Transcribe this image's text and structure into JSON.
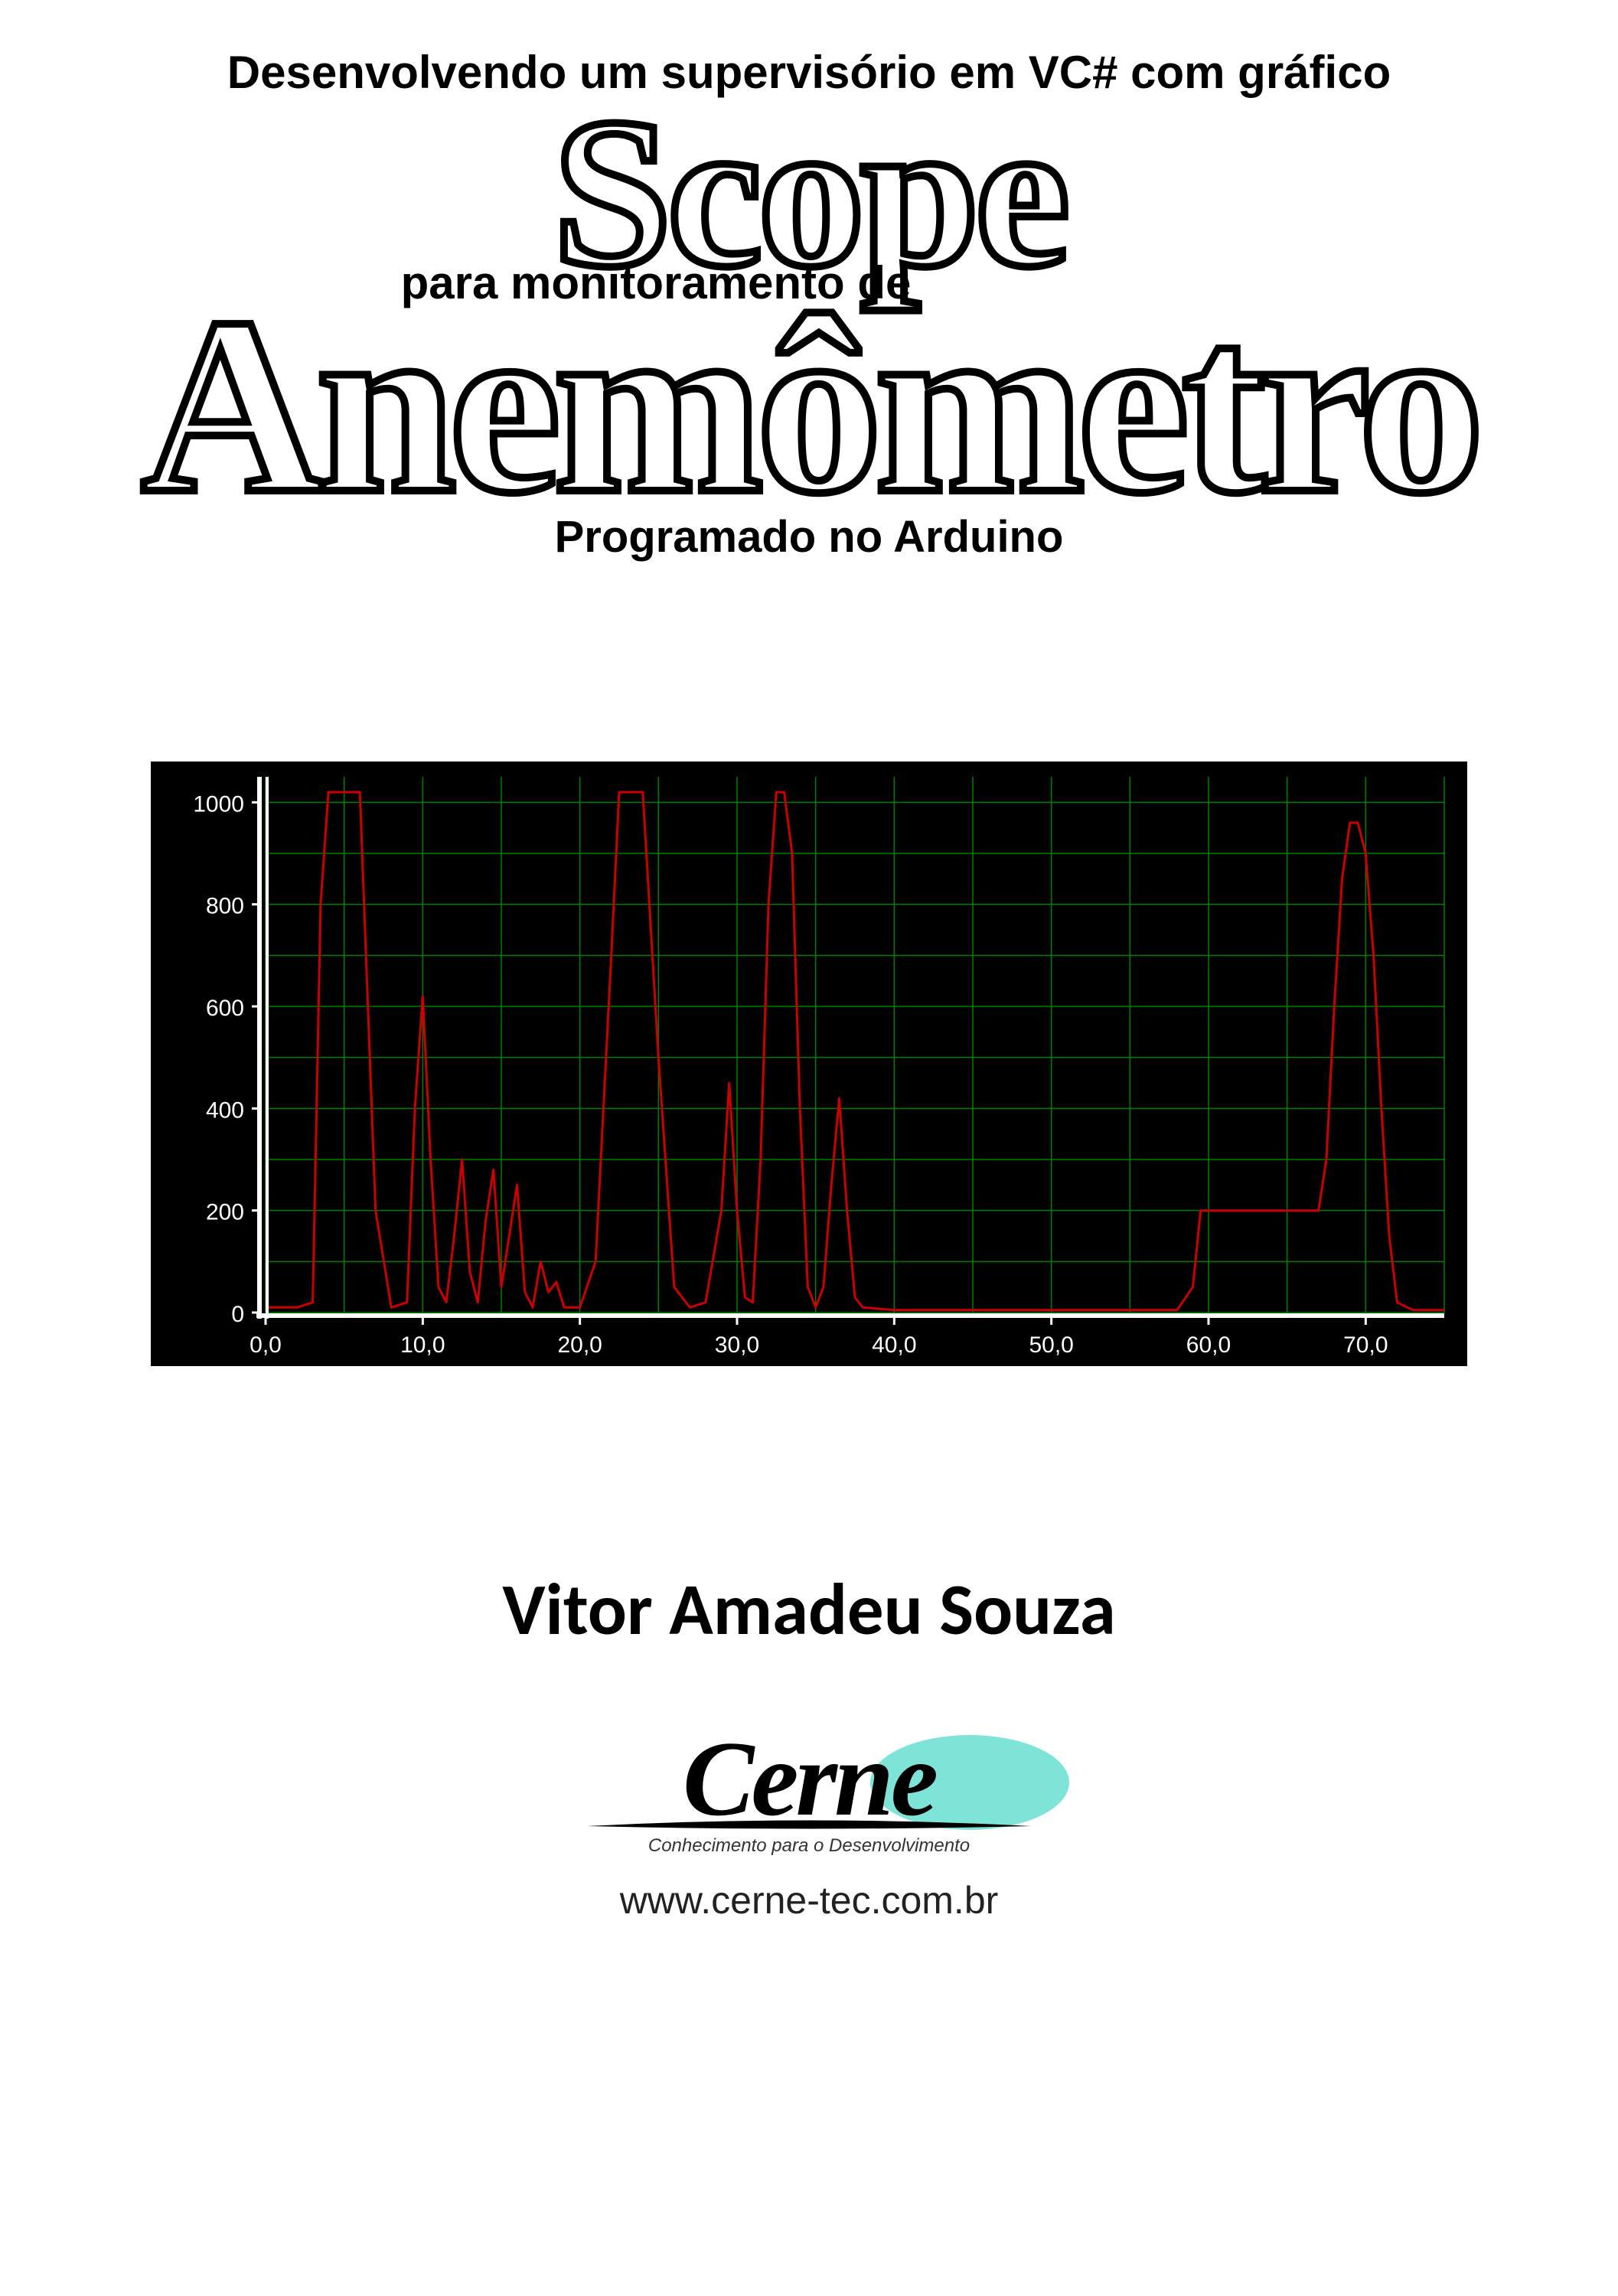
{
  "title": {
    "line1": "Desenvolvendo um supervisório em VC# com gráfico",
    "word_scope": "Scope",
    "line2": "para monitoramento de",
    "word_anemo": "Anemômetro",
    "line3": "Programado no Arduino",
    "outline_color": "#000000",
    "fill_color": "#ffffff",
    "scope_fontsize": 280,
    "anemo_fontsize": 330,
    "small_fontsize": 60
  },
  "chart": {
    "type": "line",
    "background_color": "#000000",
    "grid_color": "#008000",
    "axis_color": "#ffffff",
    "axis_line_width": 3,
    "tick_label_color": "#ffffff",
    "tick_fontsize": 30,
    "line_color": "#cc0000",
    "line_width": 3,
    "xlim": [
      0,
      75
    ],
    "ylim": [
      0,
      1050
    ],
    "x_ticks": [
      "0,0",
      "10,0",
      "20,0",
      "30,0",
      "40,0",
      "50,0",
      "60,0",
      "70,0"
    ],
    "x_tick_values": [
      0,
      10,
      20,
      30,
      40,
      50,
      60,
      70
    ],
    "x_tick_step": 10,
    "y_ticks": [
      "0",
      "200",
      "400",
      "600",
      "800",
      "1000"
    ],
    "y_tick_values": [
      0,
      200,
      400,
      600,
      800,
      1000
    ],
    "y_tick_step": 200,
    "y_grid_step": 100,
    "x_grid_step": 5,
    "series": [
      {
        "x": 0,
        "y": 10
      },
      {
        "x": 2,
        "y": 10
      },
      {
        "x": 3,
        "y": 20
      },
      {
        "x": 3.5,
        "y": 800
      },
      {
        "x": 4,
        "y": 1020
      },
      {
        "x": 5,
        "y": 1020
      },
      {
        "x": 6,
        "y": 1020
      },
      {
        "x": 7,
        "y": 200
      },
      {
        "x": 8,
        "y": 10
      },
      {
        "x": 9,
        "y": 20
      },
      {
        "x": 9.5,
        "y": 400
      },
      {
        "x": 10,
        "y": 620
      },
      {
        "x": 10.5,
        "y": 300
      },
      {
        "x": 11,
        "y": 50
      },
      {
        "x": 11.5,
        "y": 20
      },
      {
        "x": 12,
        "y": 150
      },
      {
        "x": 12.5,
        "y": 300
      },
      {
        "x": 13,
        "y": 80
      },
      {
        "x": 13.5,
        "y": 20
      },
      {
        "x": 14,
        "y": 180
      },
      {
        "x": 14.5,
        "y": 280
      },
      {
        "x": 15,
        "y": 50
      },
      {
        "x": 15.5,
        "y": 150
      },
      {
        "x": 16,
        "y": 250
      },
      {
        "x": 16.5,
        "y": 40
      },
      {
        "x": 17,
        "y": 10
      },
      {
        "x": 17.5,
        "y": 100
      },
      {
        "x": 18,
        "y": 40
      },
      {
        "x": 18.5,
        "y": 60
      },
      {
        "x": 19,
        "y": 10
      },
      {
        "x": 20,
        "y": 10
      },
      {
        "x": 21,
        "y": 100
      },
      {
        "x": 22,
        "y": 700
      },
      {
        "x": 22.5,
        "y": 1020
      },
      {
        "x": 23,
        "y": 1020
      },
      {
        "x": 24,
        "y": 1020
      },
      {
        "x": 25,
        "y": 500
      },
      {
        "x": 26,
        "y": 50
      },
      {
        "x": 27,
        "y": 10
      },
      {
        "x": 28,
        "y": 20
      },
      {
        "x": 29,
        "y": 200
      },
      {
        "x": 29.5,
        "y": 450
      },
      {
        "x": 30,
        "y": 200
      },
      {
        "x": 30.5,
        "y": 30
      },
      {
        "x": 31,
        "y": 20
      },
      {
        "x": 31.5,
        "y": 300
      },
      {
        "x": 32,
        "y": 800
      },
      {
        "x": 32.5,
        "y": 1020
      },
      {
        "x": 33,
        "y": 1020
      },
      {
        "x": 33.5,
        "y": 900
      },
      {
        "x": 34,
        "y": 400
      },
      {
        "x": 34.5,
        "y": 50
      },
      {
        "x": 35,
        "y": 10
      },
      {
        "x": 35.5,
        "y": 50
      },
      {
        "x": 36,
        "y": 250
      },
      {
        "x": 36.5,
        "y": 420
      },
      {
        "x": 37,
        "y": 200
      },
      {
        "x": 37.5,
        "y": 30
      },
      {
        "x": 38,
        "y": 10
      },
      {
        "x": 40,
        "y": 5
      },
      {
        "x": 45,
        "y": 5
      },
      {
        "x": 50,
        "y": 5
      },
      {
        "x": 55,
        "y": 5
      },
      {
        "x": 58,
        "y": 5
      },
      {
        "x": 59,
        "y": 50
      },
      {
        "x": 59.5,
        "y": 200
      },
      {
        "x": 60,
        "y": 200
      },
      {
        "x": 63,
        "y": 200
      },
      {
        "x": 66,
        "y": 200
      },
      {
        "x": 67,
        "y": 200
      },
      {
        "x": 67.5,
        "y": 300
      },
      {
        "x": 68,
        "y": 600
      },
      {
        "x": 68.5,
        "y": 850
      },
      {
        "x": 69,
        "y": 960
      },
      {
        "x": 69.5,
        "y": 960
      },
      {
        "x": 70,
        "y": 900
      },
      {
        "x": 70.5,
        "y": 700
      },
      {
        "x": 71,
        "y": 400
      },
      {
        "x": 71.5,
        "y": 150
      },
      {
        "x": 72,
        "y": 20
      },
      {
        "x": 73,
        "y": 5
      },
      {
        "x": 75,
        "y": 5
      }
    ]
  },
  "author": "Vitor Amadeu Souza",
  "logo": {
    "text": "Cerne",
    "tagline": "Conhecimento para o Desenvolvimento",
    "text_color": "#000000",
    "ellipse_color": "#48d8c8",
    "fontsize": 140,
    "tagline_fontsize": 24
  },
  "url": "www.cerne-tec.com.br"
}
